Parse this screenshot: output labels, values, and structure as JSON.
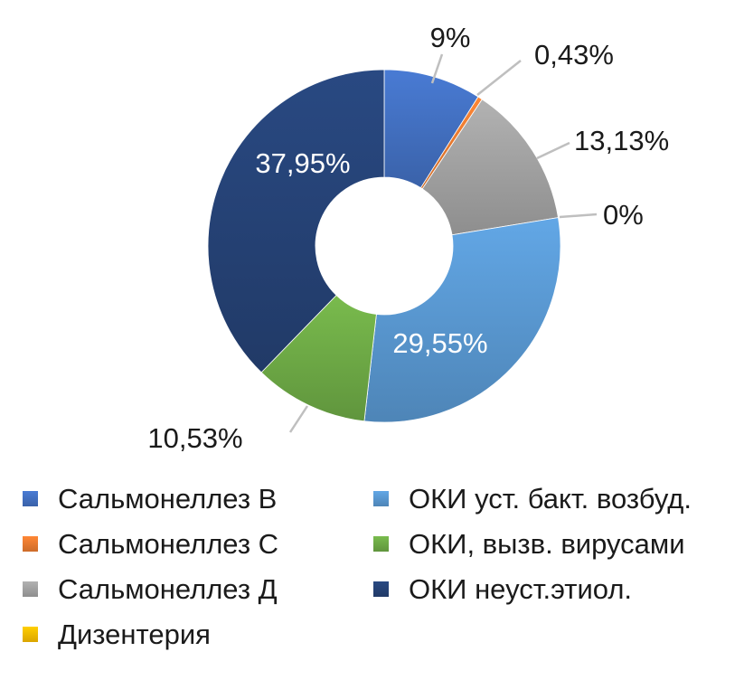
{
  "chart_data": {
    "type": "pie",
    "donut": true,
    "labels_as_percent": true,
    "legend_position": "bottom",
    "slices": [
      {
        "label": "Сальмонеллез В",
        "value": 9.0,
        "display": "9%",
        "color": "#4472c4",
        "label_style": "outside"
      },
      {
        "label": "Сальмонеллез С",
        "value": 0.43,
        "display": "0,43%",
        "color": "#ed7d31",
        "label_style": "outside"
      },
      {
        "label": "Сальмонеллез Д",
        "value": 13.13,
        "display": "13,13%",
        "color": "#a5a5a5",
        "label_style": "outside"
      },
      {
        "label": "Дизентерия",
        "value": 0.0,
        "display": "0%",
        "color": "#ffc000",
        "label_style": "outside"
      },
      {
        "label": "ОКИ уст. бакт. возбуд.",
        "value": 29.55,
        "display": "29,55%",
        "color": "#5b9bd5",
        "label_style": "inside"
      },
      {
        "label": "ОКИ, вызв. вирусами",
        "value": 10.53,
        "display": "10,53%",
        "color": "#70ad47",
        "label_style": "outside"
      },
      {
        "label": "ОКИ неуст.этиол.",
        "value": 37.95,
        "display": "37,95%",
        "color": "#264478",
        "label_style": "inside"
      }
    ],
    "legend_order": [
      0,
      4,
      1,
      5,
      2,
      6,
      3
    ]
  }
}
